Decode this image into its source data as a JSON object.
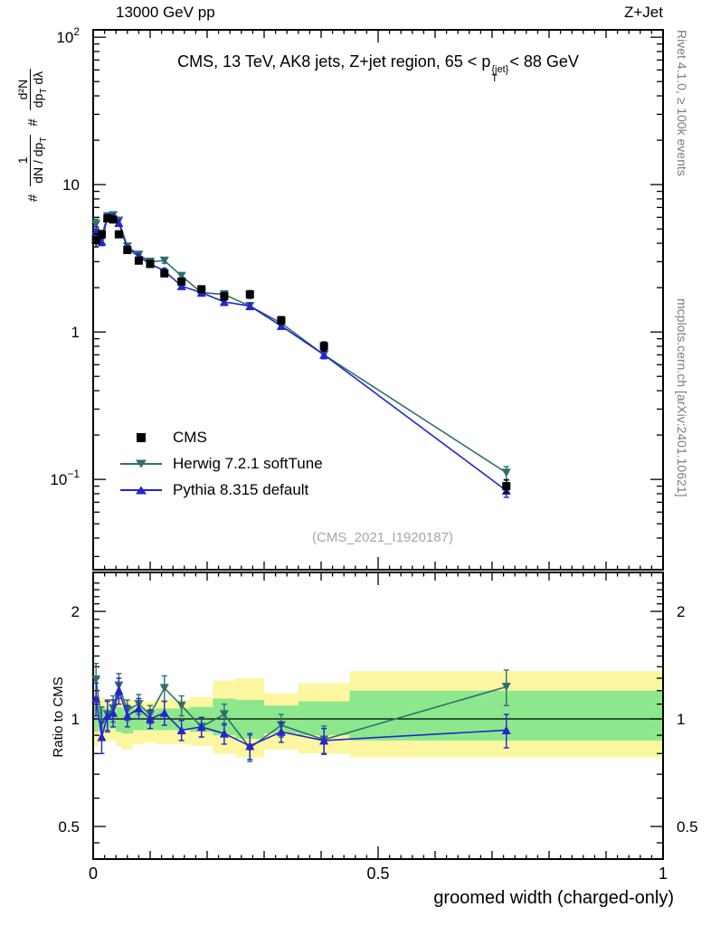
{
  "header": {
    "left": "13000 GeV pp",
    "right": "Z+Jet"
  },
  "main": {
    "title": {
      "prefix": "CMS, 13 TeV, AK8 jets, Z+jet region, 65 < p",
      "sup": "{jet}",
      "sub": "T",
      "suffix": "< 88 GeV"
    },
    "ylabel": {
      "hash1": "#",
      "num1": "1",
      "den1a": "dN / dp",
      "den1sub": "T",
      "hash2": "#",
      "num2": "d²N",
      "den2a": "dp",
      "den2sub": "T",
      "den2b": " dλ"
    },
    "watermark": "(CMS_2021_I1920187)"
  },
  "sidebar_right": {
    "rivet": "Rivet 4.1.0, ≥ 100k events",
    "mcplots": "mcplots.cern.ch [arXiv:2401.10621]"
  },
  "axes_labels": {
    "xlabel": "groomed width (charged-only)",
    "ratio_ylabel": "Ratio to CMS"
  },
  "chart_data": {
    "type": "line",
    "title": "CMS, 13 TeV, AK8 jets, Z+jet region, 65 < pT{jet} < 88 GeV",
    "xlabel": "groomed width (charged-only)",
    "ylabel": "# 1/(dN/dpT) # d²N/(dpT dλ)",
    "ratio_ylabel": "Ratio to CMS",
    "x_axis": {
      "range": [
        0,
        1
      ],
      "major_ticks": [
        0,
        0.5,
        1
      ],
      "tick_labels": [
        "0",
        "0.5",
        "1"
      ]
    },
    "y_axis_main": {
      "scale": "log",
      "range": [
        0.024,
        112
      ],
      "label_exponents": [
        2,
        1,
        0,
        -1
      ]
    },
    "y_axis_ratio": {
      "scale": "log",
      "range": [
        0.41,
        2.55
      ],
      "major_ticks": [
        2,
        1,
        0.5
      ],
      "tick_labels": [
        "2",
        "1",
        "0.5"
      ],
      "minor_ticks": [
        0.45,
        0.6,
        0.7,
        0.8,
        0.9,
        1.1,
        1.2,
        1.3,
        1.4,
        1.5,
        1.6,
        1.7,
        1.8,
        1.9,
        2.1,
        2.2,
        2.3,
        2.4
      ]
    },
    "x": [
      0.005,
      0.015,
      0.025,
      0.035,
      0.045,
      0.06,
      0.08,
      0.1,
      0.125,
      0.155,
      0.19,
      0.23,
      0.275,
      0.33,
      0.405,
      0.725
    ],
    "series": [
      {
        "name": "CMS",
        "color": "#000000",
        "marker": "square",
        "line": false,
        "values": [
          4.2,
          4.6,
          5.9,
          5.8,
          4.6,
          3.6,
          3.05,
          2.9,
          2.5,
          2.2,
          1.95,
          1.75,
          1.8,
          1.2,
          0.8,
          0.09
        ],
        "yerr_frac": [
          0.1,
          0.06,
          0.05,
          0.05,
          0.05,
          0.05,
          0.05,
          0.05,
          0.05,
          0.05,
          0.05,
          0.06,
          0.06,
          0.06,
          0.07,
          0.1
        ]
      },
      {
        "name": "Herwig 7.2.1 softTune",
        "color": "#2e6f6f",
        "marker": "triangle-down",
        "line": true,
        "values": [
          5.4,
          4.5,
          6.1,
          6.2,
          5.7,
          3.8,
          3.35,
          3.0,
          3.05,
          2.4,
          1.85,
          1.8,
          1.5,
          1.15,
          0.7,
          0.111
        ],
        "yerr_frac": [
          0.08,
          0.06,
          0.05,
          0.05,
          0.05,
          0.04,
          0.04,
          0.04,
          0.04,
          0.04,
          0.04,
          0.05,
          0.05,
          0.05,
          0.06,
          0.1
        ],
        "ratio": [
          1.29,
          0.98,
          1.03,
          1.07,
          1.24,
          1.06,
          1.1,
          1.03,
          1.22,
          1.09,
          0.95,
          1.03,
          0.83,
          0.96,
          0.875,
          1.23
        ],
        "ratio_err": [
          0.14,
          0.1,
          0.1,
          0.09,
          0.1,
          0.07,
          0.07,
          0.06,
          0.1,
          0.07,
          0.06,
          0.07,
          0.07,
          0.07,
          0.08,
          0.14
        ]
      },
      {
        "name": "Pythia 8.315 default",
        "color": "#2525cc",
        "marker": "triangle-up",
        "line": true,
        "values": [
          4.8,
          4.1,
          6.0,
          6.0,
          5.5,
          3.7,
          3.25,
          2.9,
          2.6,
          2.05,
          1.85,
          1.6,
          1.5,
          1.1,
          0.7,
          0.084
        ],
        "yerr_frac": [
          0.08,
          0.06,
          0.05,
          0.05,
          0.05,
          0.04,
          0.04,
          0.04,
          0.04,
          0.04,
          0.04,
          0.05,
          0.05,
          0.05,
          0.06,
          0.1
        ],
        "ratio": [
          1.14,
          0.89,
          1.02,
          1.04,
          1.2,
          1.02,
          1.07,
          1.0,
          1.04,
          0.93,
          0.95,
          0.91,
          0.84,
          0.92,
          0.87,
          0.93
        ],
        "ratio_err": [
          0.12,
          0.09,
          0.1,
          0.09,
          0.1,
          0.07,
          0.07,
          0.06,
          0.08,
          0.06,
          0.06,
          0.06,
          0.07,
          0.06,
          0.07,
          0.1
        ]
      }
    ],
    "bands": {
      "edges": [
        0,
        0.01,
        0.02,
        0.03,
        0.04,
        0.05,
        0.07,
        0.09,
        0.11,
        0.14,
        0.17,
        0.21,
        0.25,
        0.3,
        0.36,
        0.45,
        1.0
      ],
      "yellow_lo": [
        0.84,
        0.86,
        0.87,
        0.87,
        0.84,
        0.82,
        0.85,
        0.86,
        0.85,
        0.85,
        0.84,
        0.8,
        0.78,
        0.82,
        0.8,
        0.78
      ],
      "yellow_hi": [
        1.18,
        1.15,
        1.14,
        1.13,
        1.16,
        1.13,
        1.13,
        1.12,
        1.14,
        1.13,
        1.15,
        1.28,
        1.3,
        1.18,
        1.26,
        1.36
      ],
      "green_lo": [
        0.92,
        0.93,
        0.94,
        0.94,
        0.92,
        0.91,
        0.93,
        0.93,
        0.93,
        0.93,
        0.92,
        0.9,
        0.88,
        0.91,
        0.9,
        0.87
      ],
      "green_hi": [
        1.09,
        1.08,
        1.07,
        1.07,
        1.08,
        1.07,
        1.07,
        1.06,
        1.07,
        1.07,
        1.08,
        1.14,
        1.13,
        1.09,
        1.12,
        1.2
      ],
      "yellow_color": "#fdf6a0",
      "green_color": "#8de88d"
    },
    "reference_line": 1,
    "legend_position": "left-middle",
    "grid": false
  }
}
